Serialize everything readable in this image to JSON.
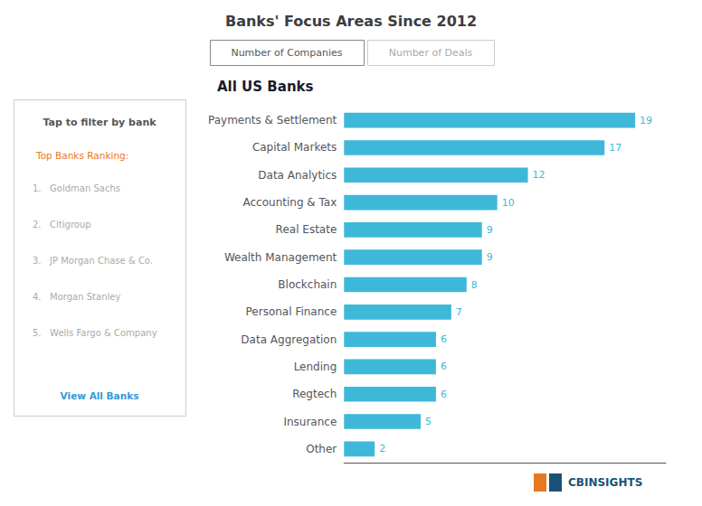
{
  "chart_data": {
    "type": "bar",
    "orientation": "horizontal",
    "title": "Banks' Focus Areas Since 2012",
    "subtitle": "All US Banks",
    "categories": [
      "Payments & Settlement",
      "Capital Markets",
      "Data Analytics",
      "Accounting & Tax",
      "Real Estate",
      "Wealth Management",
      "Blockchain",
      "Personal Finance",
      "Data Aggregation",
      "Lending",
      "Regtech",
      "Insurance",
      "Other"
    ],
    "values": [
      19,
      17,
      12,
      10,
      9,
      9,
      8,
      7,
      6,
      6,
      6,
      5,
      2
    ],
    "color": "#3eb8d9",
    "xlim": [
      0,
      21
    ],
    "xticks": [],
    "data_labels": true,
    "tick_labels": "y",
    "grid": false,
    "annotations": [
      "Number of Companies",
      "Number of Deals",
      "Tap to filter by bank",
      "Top Banks Ranking:",
      "1.   Goldman Sachs",
      "2.   Citigroup",
      "3.   JP Morgan Chase & Co.",
      "4.   Morgan Stanley",
      "5.   Wells Fargo & Company",
      "View All Banks",
      "CBINSIGHTS"
    ]
  }
}
